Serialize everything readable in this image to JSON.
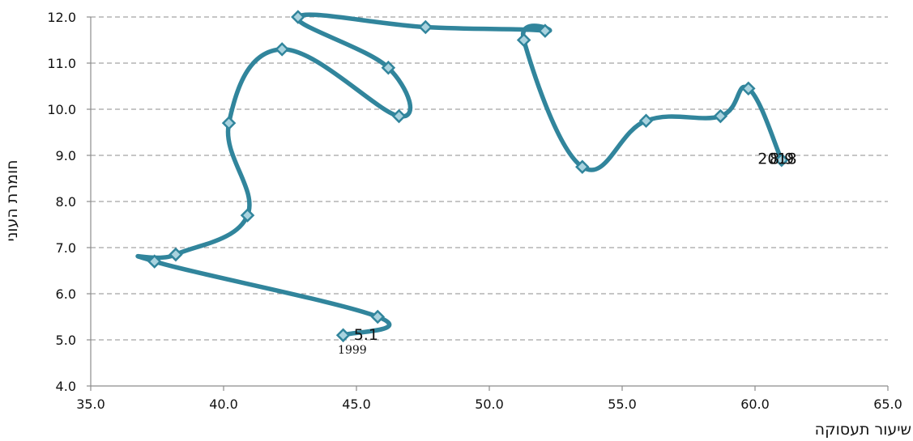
{
  "chart_data": {
    "type": "line",
    "xlabel": "שיעור תעסוקה",
    "ylabel": "חומרת העוני",
    "xlim": [
      35.0,
      65.0
    ],
    "ylim": [
      4.0,
      12.0
    ],
    "x_ticks": [
      "35.0",
      "40.0",
      "45.0",
      "50.0",
      "55.0",
      "60.0",
      "65.0"
    ],
    "y_ticks": [
      "4.0",
      "5.0",
      "6.0",
      "7.0",
      "8.0",
      "9.0",
      "10.0",
      "11.0",
      "12.0"
    ],
    "grid": true,
    "series": [
      {
        "color": "#31859c",
        "points": [
          {
            "x": 44.5,
            "y": 5.1
          },
          {
            "x": 45.8,
            "y": 5.5
          },
          {
            "x": 37.4,
            "y": 6.7
          },
          {
            "x": 38.2,
            "y": 6.85
          },
          {
            "x": 40.9,
            "y": 7.7
          },
          {
            "x": 40.2,
            "y": 9.7
          },
          {
            "x": 42.2,
            "y": 11.3
          },
          {
            "x": 46.6,
            "y": 9.85
          },
          {
            "x": 46.2,
            "y": 10.9
          },
          {
            "x": 42.8,
            "y": 12.0
          },
          {
            "x": 47.6,
            "y": 11.78
          },
          {
            "x": 52.1,
            "y": 11.7
          },
          {
            "x": 51.3,
            "y": 11.5
          },
          {
            "x": 53.5,
            "y": 8.75
          },
          {
            "x": 55.9,
            "y": 9.75
          },
          {
            "x": 58.7,
            "y": 9.85
          },
          {
            "x": 59.75,
            "y": 10.45
          },
          {
            "x": 61.0,
            "y": 8.9
          }
        ]
      }
    ],
    "annotations": [
      {
        "text": "5.1",
        "x": 44.9,
        "y": 5.0,
        "size": "big"
      },
      {
        "text": "1999",
        "x": 44.3,
        "y": 4.7,
        "size": "small"
      },
      {
        "text": "2018",
        "x": 60.1,
        "y": 8.82,
        "size": "big"
      },
      {
        "text": "8.9",
        "x": 60.55,
        "y": 8.82,
        "size": "big"
      }
    ]
  }
}
